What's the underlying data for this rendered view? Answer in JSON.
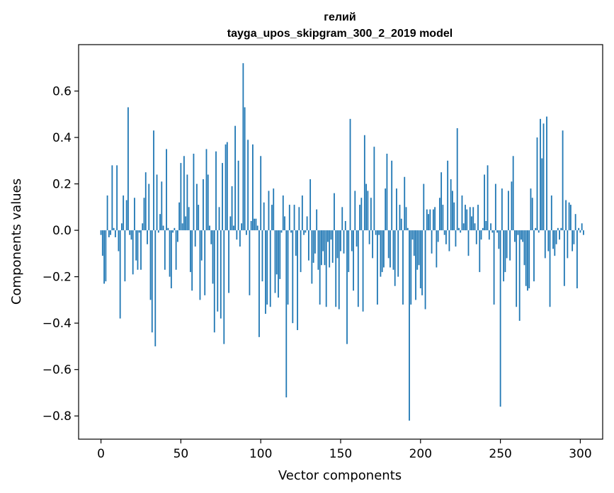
{
  "chart_data": {
    "type": "bar",
    "title": "гелий",
    "subtitle": "tayga_upos_skipgram_300_2_2019 model",
    "xlabel": "Vector components",
    "ylabel": "Components values",
    "xlim": [
      -14,
      314
    ],
    "ylim": [
      -0.9,
      0.8
    ],
    "xticks": [
      0,
      50,
      100,
      150,
      200,
      250,
      300
    ],
    "yticks": [
      -0.8,
      -0.6,
      -0.4,
      -0.2,
      0.0,
      0.2,
      0.4,
      0.6
    ],
    "ytick_labels": [
      "−0.8",
      "−0.6",
      "−0.4",
      "−0.2",
      "0.0",
      "0.2",
      "0.4",
      "0.6"
    ],
    "grid": false,
    "bar_color": "#1f77b4",
    "values": [
      -0.02,
      -0.11,
      -0.23,
      -0.22,
      0.15,
      -0.03,
      -0.02,
      0.28,
      0.01,
      -0.03,
      0.28,
      -0.09,
      -0.38,
      0.03,
      0.15,
      -0.22,
      0.13,
      0.53,
      -0.02,
      -0.04,
      -0.19,
      0.14,
      -0.13,
      -0.17,
      -0.01,
      -0.17,
      0.03,
      0.14,
      0.25,
      -0.06,
      0.2,
      -0.3,
      -0.44,
      0.43,
      -0.5,
      0.24,
      -0.01,
      0.07,
      0.21,
      0.02,
      -0.17,
      0.35,
      0.01,
      -0.2,
      -0.25,
      -0.01,
      0.01,
      -0.17,
      -0.05,
      0.12,
      0.29,
      0.03,
      0.32,
      0.06,
      0.24,
      0.1,
      -0.18,
      -0.26,
      0.33,
      -0.07,
      0.2,
      0.11,
      -0.3,
      -0.13,
      0.22,
      -0.28,
      0.35,
      0.24,
      0.02,
      -0.06,
      -0.23,
      -0.44,
      0.34,
      -0.35,
      0.1,
      -0.38,
      0.29,
      -0.49,
      0.37,
      0.38,
      -0.27,
      0.06,
      0.19,
      0.02,
      0.45,
      -0.04,
      0.3,
      -0.07,
      0.03,
      0.72,
      0.53,
      -0.02,
      0.39,
      -0.28,
      0.04,
      0.37,
      0.05,
      0.05,
      0.02,
      -0.46,
      0.32,
      -0.22,
      0.12,
      -0.36,
      -0.32,
      0.17,
      -0.33,
      0.11,
      0.18,
      -0.27,
      -0.19,
      -0.29,
      -0.21,
      -0.01,
      0.15,
      0.06,
      -0.72,
      -0.32,
      0.11,
      -0.01,
      -0.4,
      0.11,
      -0.11,
      -0.43,
      0.1,
      -0.18,
      0.15,
      -0.02,
      -0.01,
      0.06,
      -0.13,
      0.22,
      -0.23,
      -0.14,
      -0.1,
      0.09,
      -0.17,
      -0.32,
      -0.15,
      -0.09,
      -0.15,
      -0.33,
      -0.05,
      -0.16,
      -0.04,
      -0.14,
      0.16,
      -0.33,
      -0.12,
      -0.34,
      -0.09,
      0.1,
      -0.1,
      0.04,
      -0.49,
      -0.18,
      0.48,
      -0.09,
      -0.26,
      0.17,
      -0.07,
      -0.33,
      0.11,
      0.14,
      -0.35,
      0.41,
      0.2,
      0.17,
      -0.06,
      0.14,
      -0.12,
      0.36,
      -0.02,
      -0.32,
      -0.02,
      -0.2,
      -0.18,
      -0.16,
      0.18,
      0.33,
      -0.12,
      -0.16,
      0.3,
      -0.17,
      -0.24,
      0.18,
      -0.2,
      0.11,
      0.05,
      -0.32,
      0.23,
      0.1,
      0.01,
      -0.82,
      -0.32,
      -0.04,
      -0.11,
      -0.3,
      -0.17,
      -0.15,
      -0.25,
      -0.28,
      0.2,
      -0.34,
      0.09,
      0.07,
      0.09,
      -0.1,
      0.09,
      0.1,
      -0.16,
      -0.05,
      0.14,
      0.25,
      0.11,
      -0.02,
      -0.06,
      0.3,
      -0.09,
      0.22,
      0.17,
      0.12,
      -0.07,
      0.44,
      0.01,
      -0.01,
      0.15,
      0.03,
      0.11,
      0.09,
      -0.11,
      0.1,
      0.06,
      0.1,
      0.03,
      -0.06,
      0.11,
      -0.18,
      -0.04,
      0.01,
      0.24,
      0.04,
      0.28,
      -0.04,
      0.03,
      -0.01,
      -0.32,
      0.2,
      -0.01,
      -0.08,
      -0.76,
      0.18,
      -0.22,
      -0.18,
      -0.12,
      0.17,
      -0.13,
      0.21,
      0.32,
      -0.05,
      -0.33,
      -0.02,
      -0.39,
      -0.04,
      -0.05,
      -0.15,
      -0.24,
      -0.26,
      -0.25,
      0.18,
      0.14,
      -0.22,
      0.01,
      0.4,
      -0.01,
      0.48,
      0.31,
      0.46,
      -0.12,
      0.49,
      -0.09,
      -0.33,
      0.15,
      -0.08,
      -0.11,
      -0.06,
      0.01,
      -0.04,
      0.01,
      0.43,
      -0.24,
      0.13,
      -0.12,
      0.12,
      0.11,
      -0.09,
      -0.06,
      0.07,
      -0.25,
      0.01,
      -0.01,
      0.03,
      -0.02
    ]
  }
}
